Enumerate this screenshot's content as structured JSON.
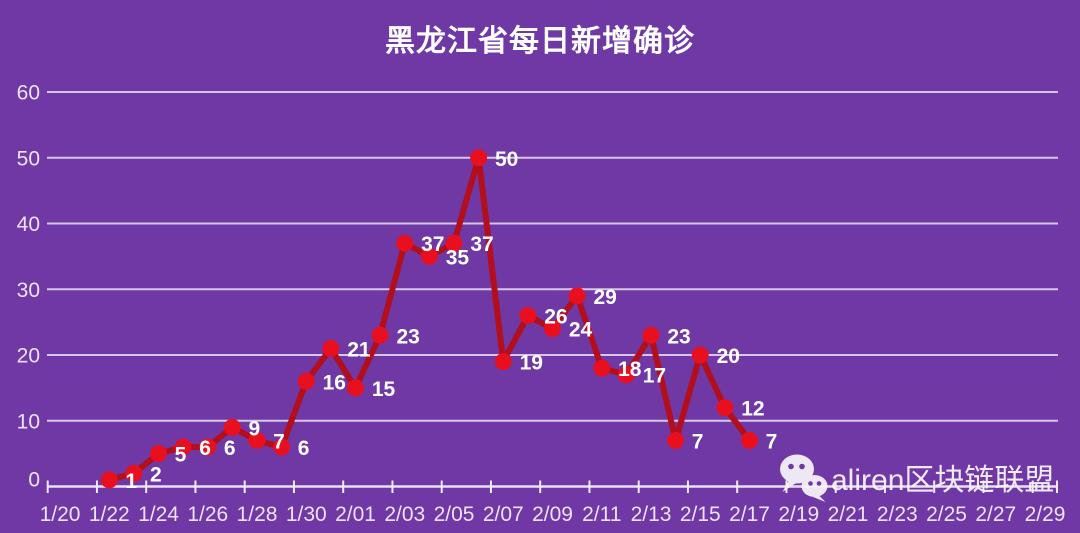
{
  "title": "黑龙江省每日新增确诊",
  "watermark": {
    "icon": "wechat-icon",
    "text": "aliren区块链联盟"
  },
  "colors": {
    "background": "#6F38A5",
    "line": "#B30E1C",
    "marker": "#E8101F",
    "grid": "#E9E0F5",
    "axis": "#F1EAFA",
    "tick_text": "#EDE2F9",
    "data_label_text": "#FFFFFF",
    "title_text": "#FFFFFF",
    "watermark_text": "#F7F4FC"
  },
  "chart_data": {
    "type": "line",
    "title": "黑龙江省每日新增确诊",
    "x": [
      "1/22",
      "1/23",
      "1/24",
      "1/25",
      "1/26",
      "1/27",
      "1/28",
      "1/29",
      "1/30",
      "1/31",
      "2/01",
      "2/02",
      "2/03",
      "2/04",
      "2/05",
      "2/06",
      "2/07",
      "2/08",
      "2/09",
      "2/10",
      "2/11",
      "2/12",
      "2/13",
      "2/14",
      "2/15",
      "2/16",
      "2/17"
    ],
    "values": [
      1,
      2,
      5,
      6,
      6,
      9,
      7,
      6,
      16,
      21,
      15,
      23,
      37,
      35,
      37,
      50,
      19,
      26,
      24,
      29,
      18,
      17,
      23,
      7,
      20,
      12,
      7
    ],
    "x_axis_tick_labels": [
      "1/20",
      "1/22",
      "1/24",
      "1/26",
      "1/28",
      "1/30",
      "2/01",
      "2/03",
      "2/05",
      "2/07",
      "2/09",
      "2/11",
      "2/13",
      "2/15",
      "2/17",
      "2/19",
      "2/21",
      "2/23",
      "2/25",
      "2/27",
      "2/29"
    ],
    "x_range": [
      "1/20",
      "2/29"
    ],
    "y_ticks": [
      0,
      10,
      20,
      30,
      40,
      50,
      60
    ],
    "ylim": [
      0,
      60
    ],
    "grid": "horizontal",
    "legend": "none",
    "marker_style": "filled-circle",
    "data_labels": "value shown right of each point"
  }
}
